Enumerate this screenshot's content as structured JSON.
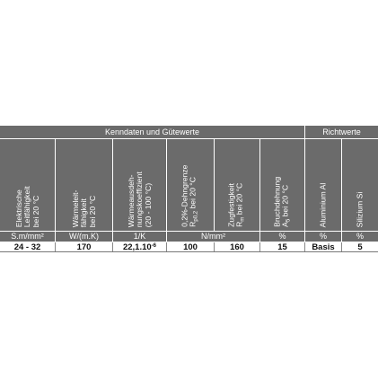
{
  "table": {
    "group_headers": {
      "kenndaten": "Kenndaten und Gütewerte",
      "richtwerte": "Richtwerte"
    },
    "columns": [
      {
        "key": "leitfaehigkeit",
        "lines": [
          "Elektrische",
          "Leitfähigkeit",
          "bei 20 °C"
        ]
      },
      {
        "key": "waermeleit",
        "lines": [
          "Wärmeleit-",
          "fähigkeit",
          "bei 20 °C"
        ]
      },
      {
        "key": "waermeausdehnung",
        "lines": [
          "Wärmeausdeh-",
          "nungskoeffizient",
          "(20 - 100 °C)"
        ]
      },
      {
        "key": "dehngrenze",
        "lines": [
          "0,2%-Dehngrenze",
          "R",
          "bei 20 °C"
        ],
        "sub": "p0,2"
      },
      {
        "key": "zugfestigkeit",
        "lines": [
          "Zugfestigkeit",
          "R",
          "bei 20 °C"
        ],
        "sub": "m"
      },
      {
        "key": "bruchdehnung",
        "lines": [
          "Bruchdehnung",
          "A",
          "bei 20 °C"
        ],
        "sub": "5"
      },
      {
        "key": "aluminium",
        "lines": [
          "Aluminium Al"
        ]
      },
      {
        "key": "silizium",
        "lines": [
          "Silizium Si"
        ]
      }
    ],
    "units": {
      "leitfaehigkeit": "S.m/mm²",
      "waermeleit": "W/(m.K)",
      "waermeausdehnung": "1/K",
      "festigkeit": "N/mm²",
      "bruchdehnung": "%",
      "aluminium": "%",
      "silizium": "%"
    },
    "values": {
      "leitfaehigkeit": "24 - 32",
      "waermeleit": "170",
      "waermeausdehnung_base": "22,1.10",
      "waermeausdehnung_exp": "-6",
      "dehngrenze": "100",
      "zugfestigkeit": "160",
      "bruchdehnung": "15",
      "aluminium": "Basis",
      "silizium": "5"
    },
    "colors": {
      "header_bg": "#6b6b6b",
      "header_text": "#ffffff",
      "value_text": "#111111"
    }
  }
}
